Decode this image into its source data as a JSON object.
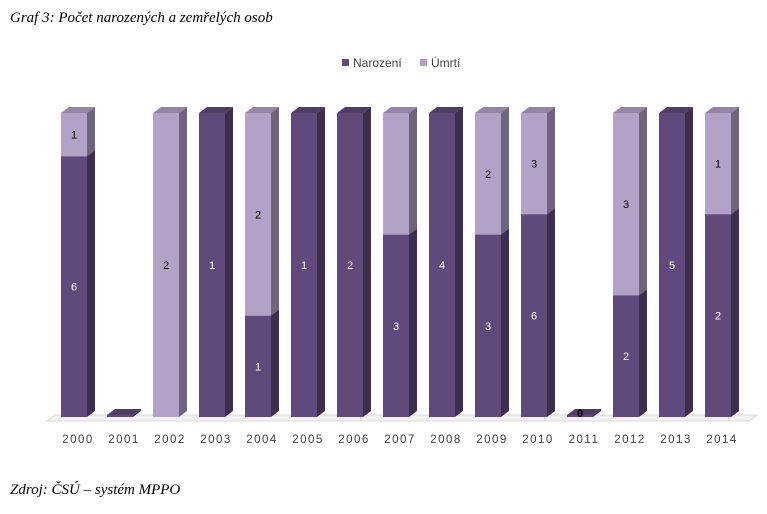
{
  "caption": "Graf 3: Počet narozených a zemřelých osob",
  "source": "Zdroj: ČSÚ – systém MPPO",
  "chart_data": {
    "type": "bar",
    "stacked": true,
    "percent_stacked": true,
    "categories": [
      "2000",
      "2001",
      "2002",
      "2003",
      "2004",
      "2005",
      "2006",
      "2007",
      "2008",
      "2009",
      "2010",
      "2011",
      "2012",
      "2013",
      "2014"
    ],
    "series": [
      {
        "name": "Narození",
        "values": [
          6,
          0,
          0,
          1,
          1,
          1,
          2,
          3,
          4,
          3,
          6,
          0,
          2,
          5,
          2
        ]
      },
      {
        "name": "Úmrtí",
        "values": [
          1,
          0,
          2,
          0,
          2,
          0,
          0,
          2,
          0,
          2,
          3,
          0,
          3,
          0,
          1
        ]
      }
    ],
    "labels": [
      [
        "6",
        "1"
      ],
      [
        "",
        ""
      ],
      [
        "",
        "2"
      ],
      [
        "1",
        ""
      ],
      [
        "1",
        "2"
      ],
      [
        "1",
        ""
      ],
      [
        "2",
        ""
      ],
      [
        "3",
        ""
      ],
      [
        "4",
        ""
      ],
      [
        "3",
        "2"
      ],
      [
        "6",
        "3"
      ],
      [
        "0",
        ""
      ],
      [
        "2",
        "3"
      ],
      [
        "5",
        ""
      ],
      [
        "2",
        "1"
      ]
    ],
    "legend": {
      "position": "top"
    },
    "grid": false,
    "colors": {
      "Narození": "#604a7b",
      "Úmrtí": "#b3a2c7"
    }
  }
}
